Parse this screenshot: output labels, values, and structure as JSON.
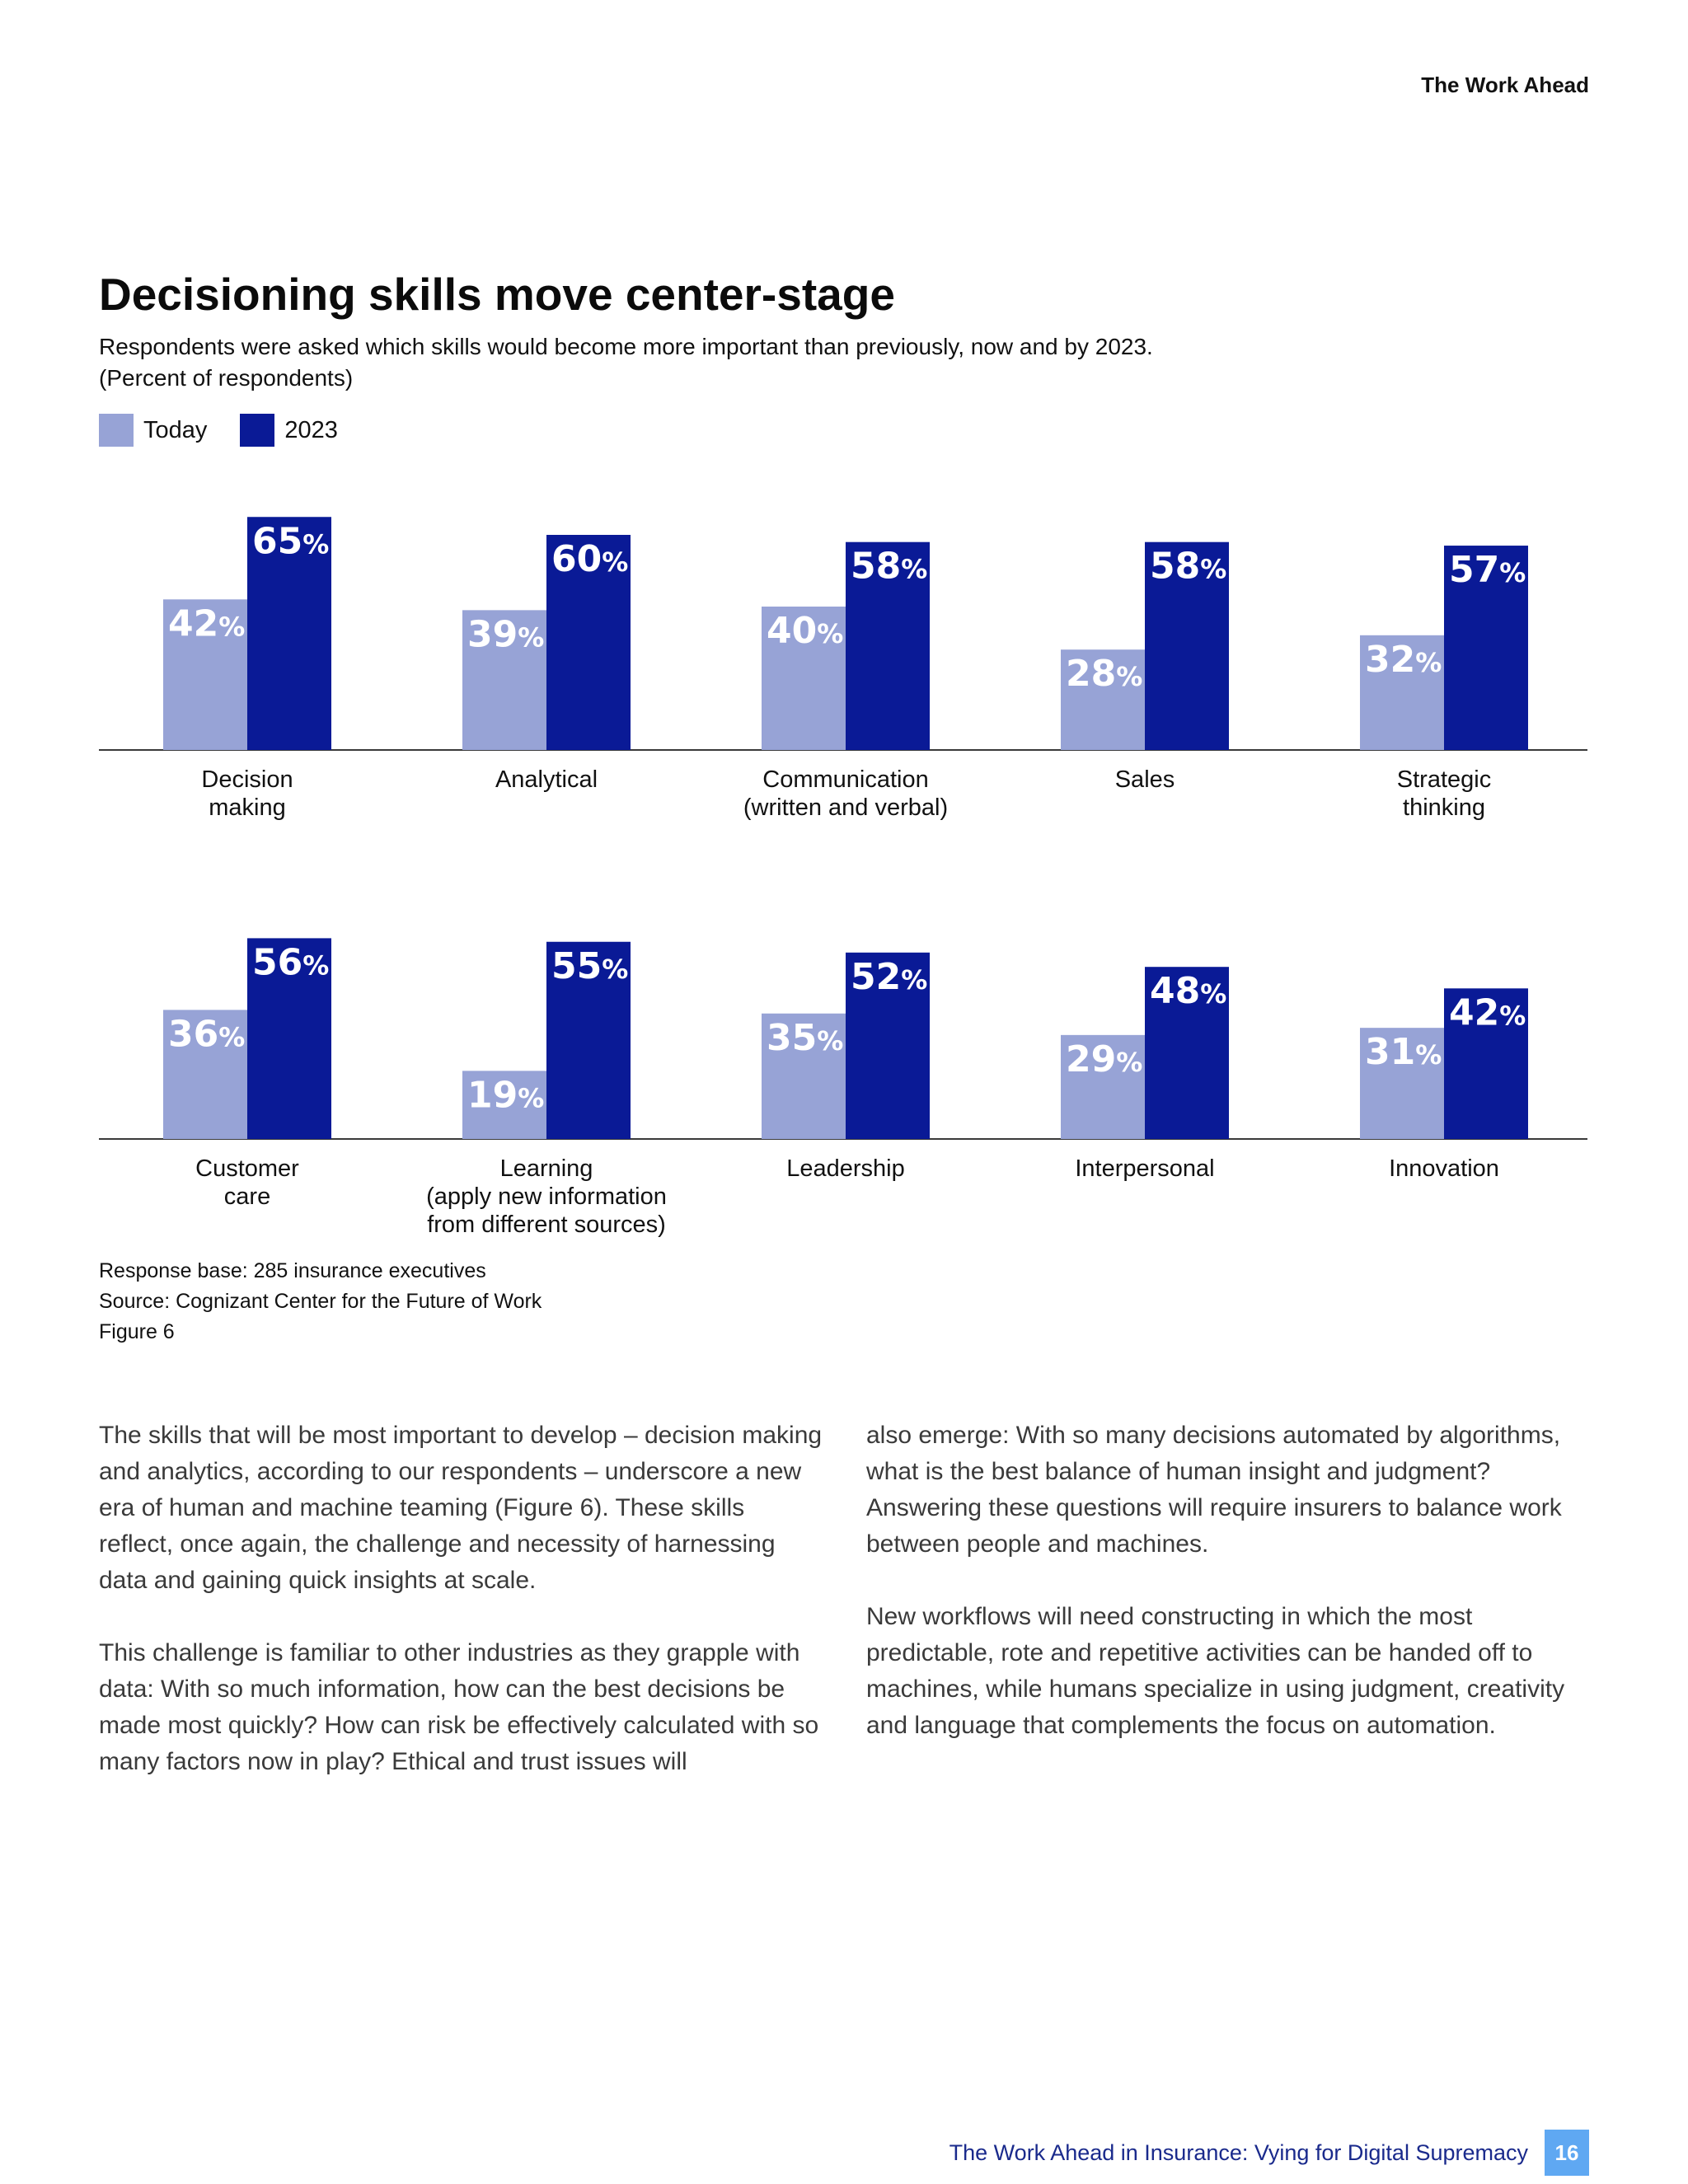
{
  "header": {
    "running_title": "The Work Ahead"
  },
  "figure": {
    "title": "Decisioning skills move center-stage",
    "subtitle_line1": "Respondents were asked which skills would become more important than previously, now and by 2023.",
    "subtitle_line2": "(Percent of respondents)",
    "legend": [
      {
        "label": "Today",
        "color": "#97a3d6"
      },
      {
        "label": "2023",
        "color": "#0a1a96"
      }
    ],
    "notes": {
      "response_base": "Response base: 285 insurance executives",
      "source": "Source: Cognizant Center for the Future of Work",
      "figure_number": "Figure 6"
    }
  },
  "chart_data": {
    "type": "bar",
    "title": "Decisioning skills move center-stage",
    "ylabel": "",
    "xlabel": "",
    "value_suffix": "%",
    "ylim": [
      0,
      100
    ],
    "grid": false,
    "legend_position": "top-left",
    "categories": [
      [
        "Decision",
        "making"
      ],
      [
        "Analytical"
      ],
      [
        "Communication",
        "(written and verbal)"
      ],
      [
        "Sales"
      ],
      [
        "Strategic",
        "thinking"
      ],
      [
        "Customer",
        "care"
      ],
      [
        "Learning",
        "(apply new information",
        "from different sources)"
      ],
      [
        "Leadership"
      ],
      [
        "Interpersonal"
      ],
      [
        "Innovation"
      ]
    ],
    "series": [
      {
        "name": "Today",
        "color": "#97a3d6",
        "values": [
          42,
          39,
          40,
          28,
          32,
          36,
          19,
          35,
          29,
          31
        ]
      },
      {
        "name": "2023",
        "color": "#0a1a96",
        "values": [
          65,
          60,
          58,
          58,
          57,
          56,
          55,
          52,
          48,
          42
        ]
      }
    ]
  },
  "body": {
    "left": [
      "The skills that will be most important to develop – decision making and analytics, according to our respondents – underscore a new era of human and machine teaming (Figure 6). These skills reflect, once again, the challenge and necessity of harnessing data and gaining quick insights at scale.",
      "This challenge is familiar to other industries as they grapple with data: With so much information, how can the best decisions be made most quickly? How can risk be effectively calculated with so many factors now in play? Ethical and trust issues will"
    ],
    "right": [
      "also emerge: With so many decisions automated by algorithms, what is the best balance of human insight and judgment? Answering these questions will require insurers to balance work between people and machines.",
      "New workflows will need constructing in which the most predictable, rote and repetitive activities can be handed off to machines, while humans specialize in using judgment, creativity and language that complements the focus on automation."
    ]
  },
  "footer": {
    "publication": "The Work Ahead in Insurance: Vying for Digital Supremacy",
    "page_number": "16"
  }
}
